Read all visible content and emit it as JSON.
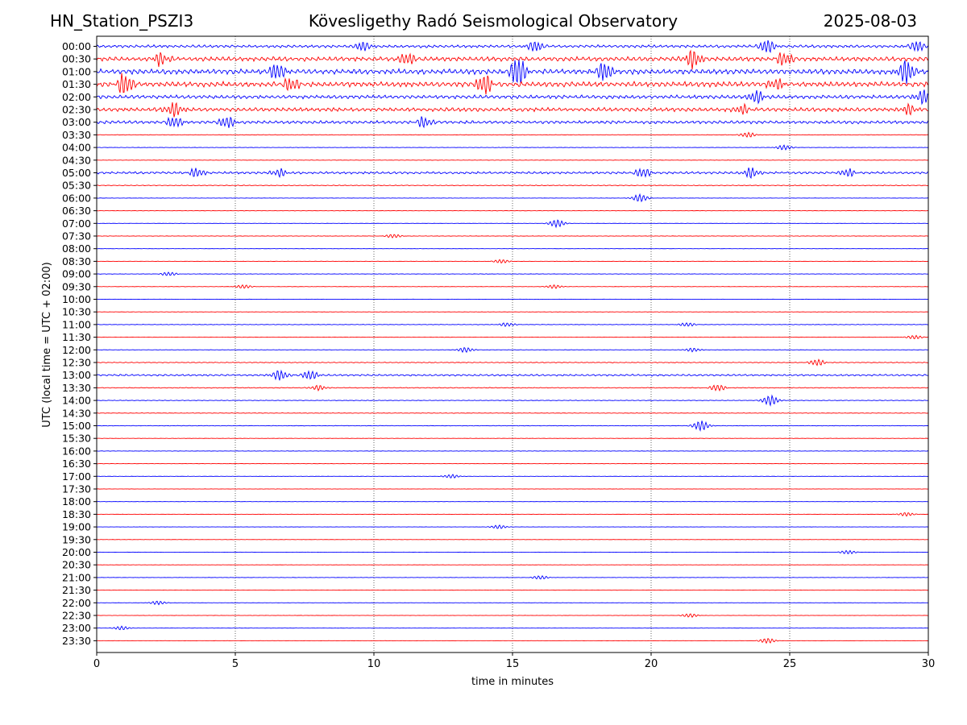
{
  "header": {
    "station": "HN_Station_PSZI3",
    "title": "Kövesligethy Radó Seismological Observatory",
    "date": "2025-08-03"
  },
  "chart_data": {
    "type": "line",
    "title": "Kövesligethy Radó Seismological Observatory",
    "xlabel": "time in minutes",
    "ylabel": "UTC (local time = UTC + 02:00)",
    "xlim": [
      0,
      30
    ],
    "xticks": [
      0,
      5,
      10,
      15,
      20,
      25,
      30
    ],
    "grid": "vertical dotted at 5-minute ticks",
    "colors": {
      "even_rows": "#0000ff",
      "odd_rows": "#ff0000"
    },
    "rows": [
      {
        "label": "00:00",
        "level": 0.55,
        "events": [
          {
            "t": 9.6,
            "amp": 0.7
          },
          {
            "t": 15.8,
            "amp": 0.8
          },
          {
            "t": 24.2,
            "amp": 1.0
          },
          {
            "t": 29.6,
            "amp": 0.8
          }
        ]
      },
      {
        "label": "00:30",
        "level": 0.85,
        "events": [
          {
            "t": 2.3,
            "amp": 1.0
          },
          {
            "t": 11.2,
            "amp": 0.9
          },
          {
            "t": 21.5,
            "amp": 1.4
          },
          {
            "t": 24.8,
            "amp": 1.0
          }
        ]
      },
      {
        "label": "01:00",
        "level": 1.0,
        "events": [
          {
            "t": 6.5,
            "amp": 1.2
          },
          {
            "t": 15.2,
            "amp": 2.2
          },
          {
            "t": 18.3,
            "amp": 1.4
          },
          {
            "t": 29.2,
            "amp": 1.8
          }
        ]
      },
      {
        "label": "01:30",
        "level": 1.0,
        "events": [
          {
            "t": 1.0,
            "amp": 1.6
          },
          {
            "t": 7.0,
            "amp": 1.0
          },
          {
            "t": 14.0,
            "amp": 1.5
          },
          {
            "t": 24.5,
            "amp": 0.8
          }
        ]
      },
      {
        "label": "02:00",
        "level": 0.7,
        "events": [
          {
            "t": 23.8,
            "amp": 1.0
          },
          {
            "t": 29.8,
            "amp": 1.0
          }
        ]
      },
      {
        "label": "02:30",
        "level": 0.75,
        "events": [
          {
            "t": 2.8,
            "amp": 1.1
          },
          {
            "t": 23.3,
            "amp": 0.7
          },
          {
            "t": 29.3,
            "amp": 0.8
          }
        ]
      },
      {
        "label": "03:00",
        "level": 0.6,
        "events": [
          {
            "t": 2.8,
            "amp": 0.8
          },
          {
            "t": 4.7,
            "amp": 0.9
          },
          {
            "t": 11.8,
            "amp": 0.8
          }
        ]
      },
      {
        "label": "03:30",
        "level": 0.1,
        "events": [
          {
            "t": 23.5,
            "amp": 0.4
          }
        ]
      },
      {
        "label": "04:00",
        "level": 0.08,
        "events": [
          {
            "t": 24.8,
            "amp": 0.4
          }
        ]
      },
      {
        "label": "04:30",
        "level": 0.08,
        "events": []
      },
      {
        "label": "05:00",
        "level": 0.45,
        "events": [
          {
            "t": 3.6,
            "amp": 0.7
          },
          {
            "t": 6.6,
            "amp": 0.6
          },
          {
            "t": 19.7,
            "amp": 0.7
          },
          {
            "t": 23.6,
            "amp": 0.8
          },
          {
            "t": 27.1,
            "amp": 0.6
          }
        ]
      },
      {
        "label": "05:30",
        "level": 0.15,
        "events": []
      },
      {
        "label": "06:00",
        "level": 0.06,
        "events": [
          {
            "t": 19.6,
            "amp": 0.6
          }
        ]
      },
      {
        "label": "06:30",
        "level": 0.08,
        "events": []
      },
      {
        "label": "07:00",
        "level": 0.05,
        "events": [
          {
            "t": 16.6,
            "amp": 0.6
          }
        ]
      },
      {
        "label": "07:30",
        "level": 0.08,
        "events": [
          {
            "t": 10.7,
            "amp": 0.3
          }
        ]
      },
      {
        "label": "08:00",
        "level": 0.05,
        "events": []
      },
      {
        "label": "08:30",
        "level": 0.06,
        "events": [
          {
            "t": 14.6,
            "amp": 0.3
          }
        ]
      },
      {
        "label": "09:00",
        "level": 0.08,
        "events": [
          {
            "t": 2.6,
            "amp": 0.3
          }
        ]
      },
      {
        "label": "09:30",
        "level": 0.06,
        "events": [
          {
            "t": 5.3,
            "amp": 0.3
          },
          {
            "t": 16.5,
            "amp": 0.3
          }
        ]
      },
      {
        "label": "10:00",
        "level": 0.05,
        "events": []
      },
      {
        "label": "10:30",
        "level": 0.06,
        "events": []
      },
      {
        "label": "11:00",
        "level": 0.1,
        "events": [
          {
            "t": 14.8,
            "amp": 0.3
          },
          {
            "t": 21.3,
            "amp": 0.3
          }
        ]
      },
      {
        "label": "11:30",
        "level": 0.06,
        "events": [
          {
            "t": 29.5,
            "amp": 0.3
          }
        ]
      },
      {
        "label": "12:00",
        "level": 0.08,
        "events": [
          {
            "t": 13.3,
            "amp": 0.4
          },
          {
            "t": 21.5,
            "amp": 0.3
          }
        ]
      },
      {
        "label": "12:30",
        "level": 0.15,
        "events": [
          {
            "t": 26.0,
            "amp": 0.5
          }
        ]
      },
      {
        "label": "13:00",
        "level": 0.35,
        "events": [
          {
            "t": 6.6,
            "amp": 0.8
          },
          {
            "t": 7.7,
            "amp": 0.7
          }
        ]
      },
      {
        "label": "13:30",
        "level": 0.15,
        "events": [
          {
            "t": 8.0,
            "amp": 0.4
          },
          {
            "t": 22.4,
            "amp": 0.5
          }
        ]
      },
      {
        "label": "14:00",
        "level": 0.12,
        "events": [
          {
            "t": 24.3,
            "amp": 0.8
          }
        ]
      },
      {
        "label": "14:30",
        "level": 0.1,
        "events": []
      },
      {
        "label": "15:00",
        "level": 0.1,
        "events": [
          {
            "t": 21.8,
            "amp": 0.8
          }
        ]
      },
      {
        "label": "15:30",
        "level": 0.06,
        "events": []
      },
      {
        "label": "16:00",
        "level": 0.08,
        "events": []
      },
      {
        "label": "16:30",
        "level": 0.06,
        "events": []
      },
      {
        "label": "17:00",
        "level": 0.05,
        "events": [
          {
            "t": 12.8,
            "amp": 0.3
          }
        ]
      },
      {
        "label": "17:30",
        "level": 0.05,
        "events": []
      },
      {
        "label": "18:00",
        "level": 0.05,
        "events": []
      },
      {
        "label": "18:30",
        "level": 0.05,
        "events": [
          {
            "t": 29.2,
            "amp": 0.3
          }
        ]
      },
      {
        "label": "19:00",
        "level": 0.05,
        "events": [
          {
            "t": 14.5,
            "amp": 0.3
          }
        ]
      },
      {
        "label": "19:30",
        "level": 0.05,
        "events": []
      },
      {
        "label": "20:00",
        "level": 0.05,
        "events": [
          {
            "t": 27.1,
            "amp": 0.3
          }
        ]
      },
      {
        "label": "20:30",
        "level": 0.05,
        "events": []
      },
      {
        "label": "21:00",
        "level": 0.06,
        "events": [
          {
            "t": 16.0,
            "amp": 0.3
          }
        ]
      },
      {
        "label": "21:30",
        "level": 0.05,
        "events": []
      },
      {
        "label": "22:00",
        "level": 0.05,
        "events": [
          {
            "t": 2.2,
            "amp": 0.3
          }
        ]
      },
      {
        "label": "22:30",
        "level": 0.05,
        "events": [
          {
            "t": 21.4,
            "amp": 0.3
          }
        ]
      },
      {
        "label": "23:00",
        "level": 0.05,
        "events": [
          {
            "t": 0.9,
            "amp": 0.3
          }
        ]
      },
      {
        "label": "23:30",
        "level": 0.05,
        "events": [
          {
            "t": 24.2,
            "amp": 0.4
          }
        ]
      }
    ]
  }
}
